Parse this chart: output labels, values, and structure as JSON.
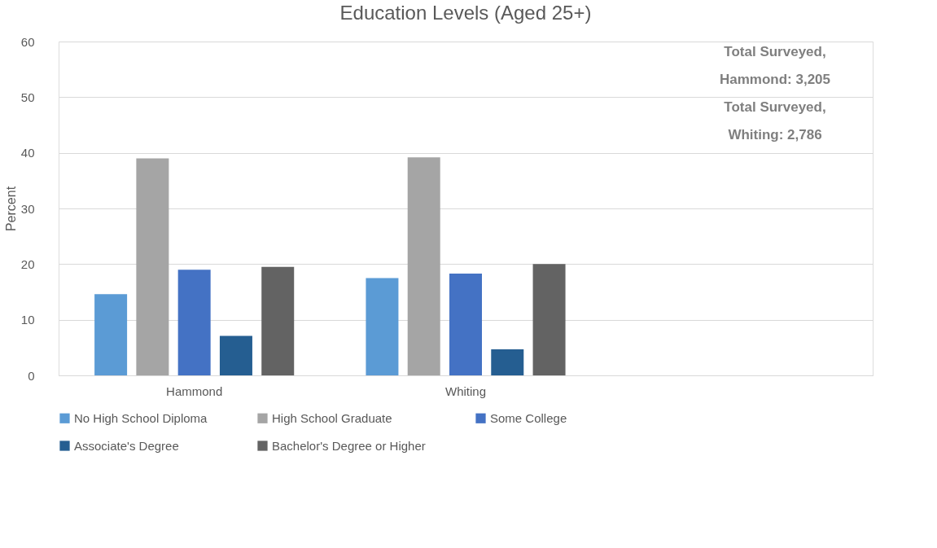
{
  "chart_data": {
    "type": "bar",
    "title": "Education Levels (Aged 25+)",
    "ylabel": "Percent",
    "categories": [
      "Hammond",
      "Whiting",
      null
    ],
    "series": [
      {
        "name": "No High School Diploma",
        "color": "#5b9bd5",
        "values": [
          14.6,
          17.5,
          null
        ]
      },
      {
        "name": "High School Graduate",
        "color": "#a5a5a5",
        "values": [
          39.0,
          39.2,
          null
        ]
      },
      {
        "name": "Some College",
        "color": "#4472c4",
        "values": [
          19.0,
          18.3,
          null
        ]
      },
      {
        "name": "Associate's Degree",
        "color": "#255e91",
        "values": [
          7.1,
          4.7,
          null
        ]
      },
      {
        "name": "Bachelor's Degree or Higher",
        "color": "#636363",
        "values": [
          19.5,
          20.0,
          null
        ]
      }
    ],
    "ylim": [
      0,
      60
    ],
    "yticks": [
      0,
      10,
      20,
      30,
      40,
      50,
      60
    ],
    "grid": "y",
    "legend": "bottom",
    "annotations": [
      "Total Surveyed, Hammond: 3,205",
      "Total Surveyed, Whiting: 2,786"
    ]
  }
}
